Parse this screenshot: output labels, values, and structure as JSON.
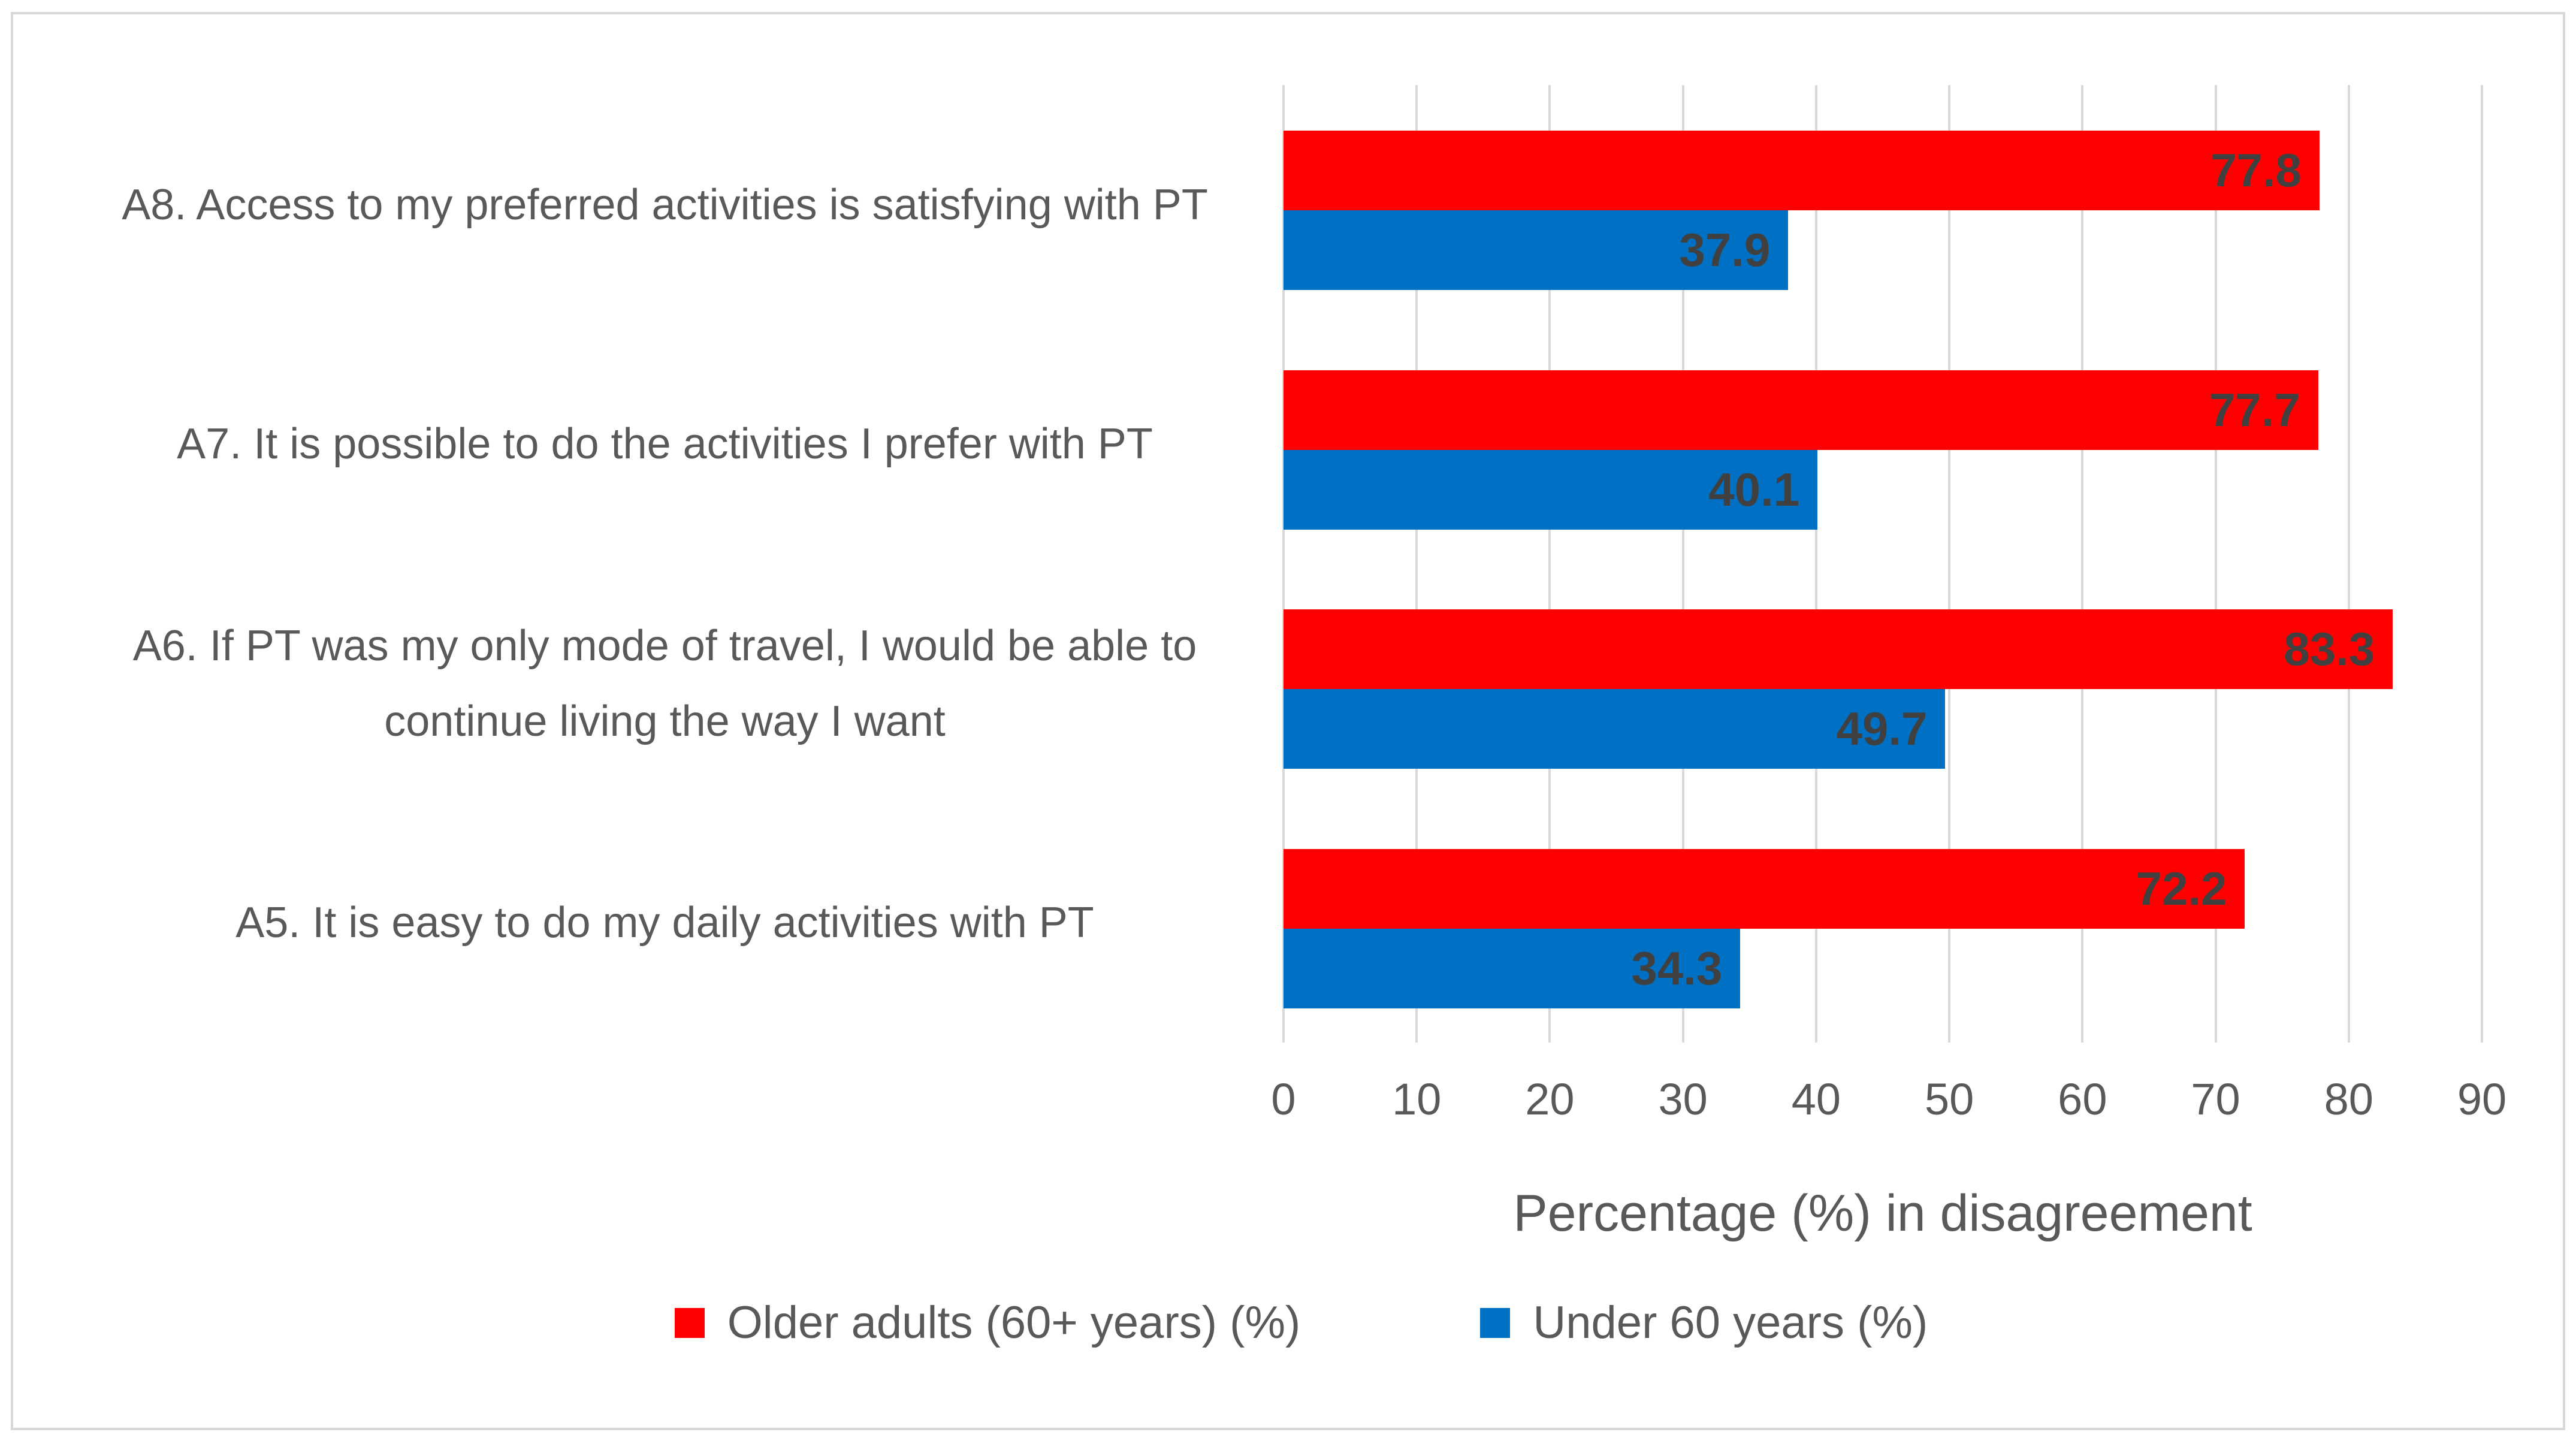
{
  "chart_data": {
    "type": "bar",
    "orientation": "horizontal",
    "title": "",
    "xlabel": "Percentage (%) in disagreement",
    "ylabel": "",
    "categories": [
      "A8. Access to my preferred activities is satisfying with PT",
      "A7. It is possible to do the activities I prefer with PT",
      "A6. If PT was my only mode of travel, I would be able to continue living the way I want",
      "A5. It is easy to do my daily activities with PT"
    ],
    "series": [
      {
        "name": "Older adults (60+ years) (%)",
        "color": "#fe0000",
        "values": [
          77.8,
          77.7,
          83.3,
          72.2
        ]
      },
      {
        "name": "Under 60 years (%)",
        "color": "#0070c5",
        "values": [
          37.9,
          40.1,
          49.7,
          34.3
        ]
      }
    ],
    "xlim": [
      0,
      90
    ],
    "xticks": [
      0,
      10,
      20,
      30,
      40,
      50,
      60,
      70,
      80,
      90
    ],
    "grid": true,
    "gridline_color": "#d9d9d9",
    "value_labels": "inside-end",
    "legend_position": "bottom",
    "text_color": "#595959",
    "value_label_color": "#404040"
  }
}
